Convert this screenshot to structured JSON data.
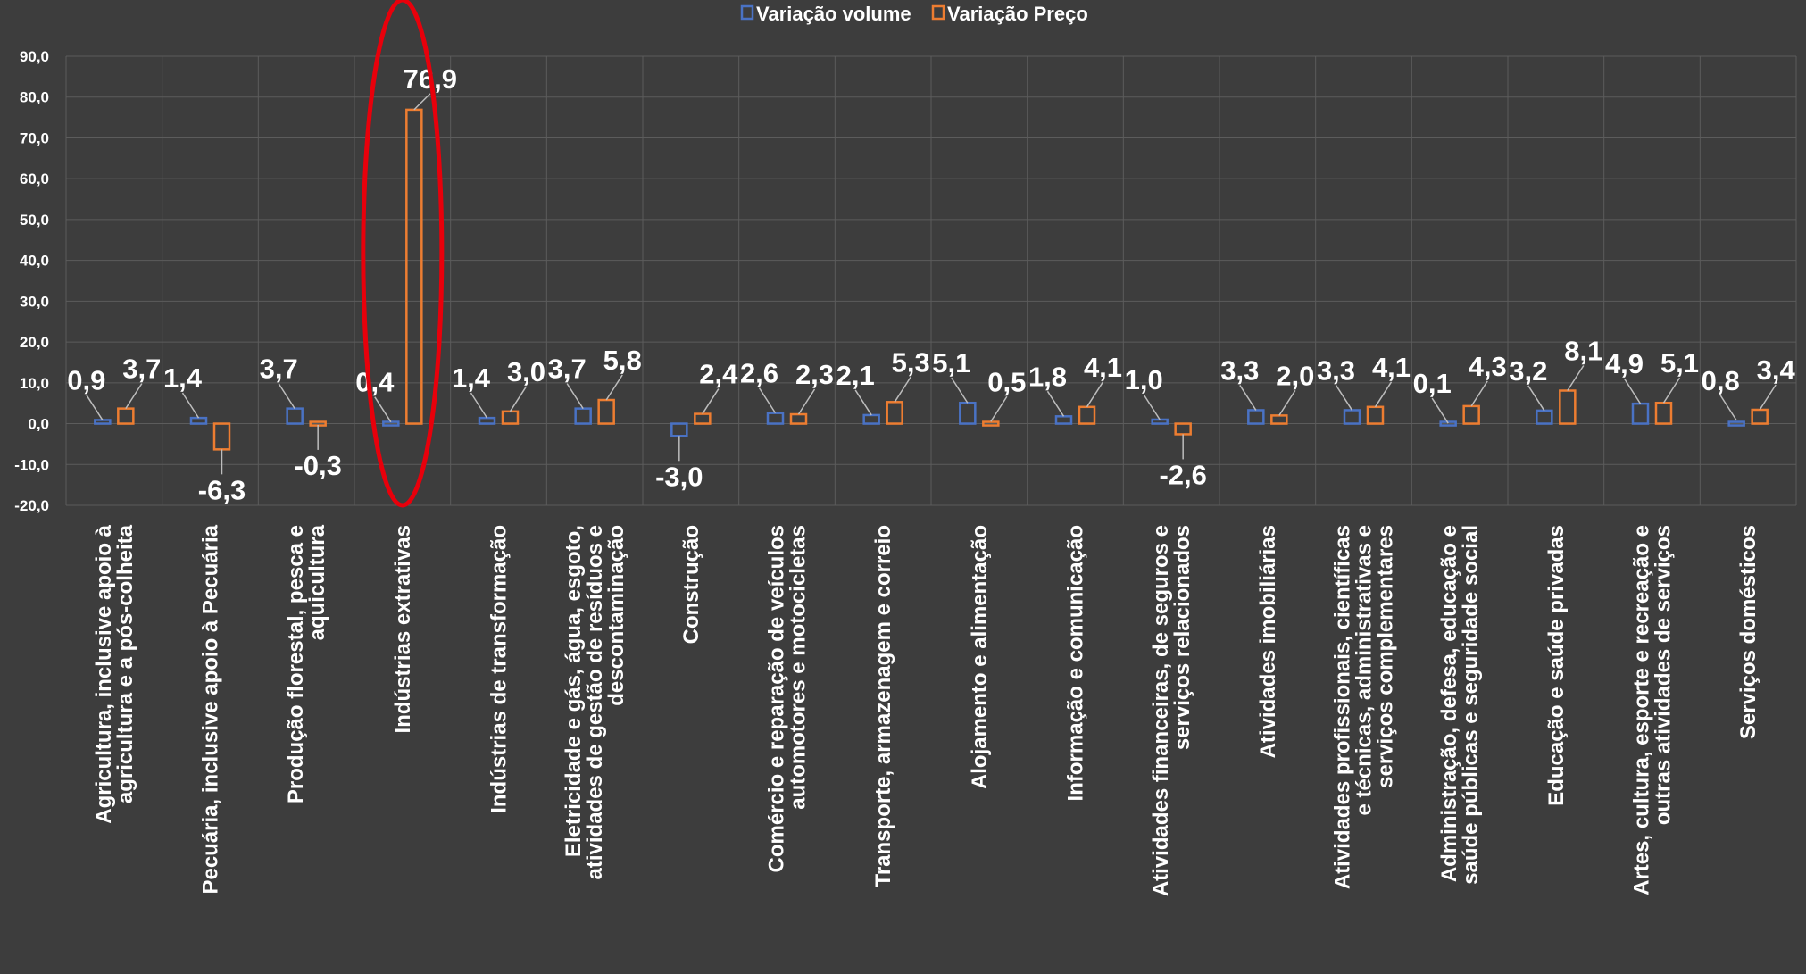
{
  "colors": {
    "background": "#3d3d3d",
    "volume": "#4a72c4",
    "price": "#ed7d31",
    "highlight": "#e8000b",
    "grid": "#5c5c5c"
  },
  "chart_data": {
    "type": "bar",
    "title": "",
    "xlabel": "",
    "ylabel": "",
    "ylim": [
      -20,
      90
    ],
    "ytick_step": 10,
    "ytick_labels": [
      "-20,0",
      "-10,0",
      "0,0",
      "10,0",
      "20,0",
      "30,0",
      "40,0",
      "50,0",
      "60,0",
      "70,0",
      "80,0",
      "90,0"
    ],
    "grid": true,
    "legend_position": "top-center",
    "highlighted_category_index": 3,
    "categories": [
      [
        "Agricultura, inclusive apoio à",
        "agricultura e a pós-colheita"
      ],
      [
        "Pecuária, inclusive apoio à Pecuária"
      ],
      [
        "Produção florestal, pesca e",
        "aquicultura"
      ],
      [
        "Indústrias extrativas"
      ],
      [
        "Indústrias de transformação"
      ],
      [
        "Eletricidade e gás, água, esgoto,",
        "atividades de gestão de resíduos e",
        "descontaminação"
      ],
      [
        "Construção"
      ],
      [
        "Comércio e reparação de veículos",
        "automotores e motocicletas"
      ],
      [
        "Transporte, armazenagem e correio"
      ],
      [
        "Alojamento e alimentação"
      ],
      [
        "Informação e comunicação"
      ],
      [
        "Atividades financeiras, de seguros e",
        "serviços relacionados"
      ],
      [
        "Atividades imobiliárias"
      ],
      [
        "Atividades profissionais, científicas",
        "e técnicas, administrativas e",
        "serviços complementares"
      ],
      [
        "Administração, defesa, educação e",
        "saúde públicas e seguridade social"
      ],
      [
        "Educação e saúde privadas"
      ],
      [
        "Artes, cultura, esporte e recreação e",
        "outras atividades de serviços"
      ],
      [
        "Serviços domésticos"
      ]
    ],
    "series": [
      {
        "name": "Variação volume",
        "values": [
          0.9,
          1.4,
          3.7,
          0.4,
          1.4,
          3.7,
          -3.0,
          2.6,
          2.1,
          5.1,
          1.8,
          1.0,
          3.3,
          3.3,
          0.1,
          3.2,
          4.9,
          0.8
        ],
        "labels": [
          "0,9",
          "1,4",
          "3,7",
          "0,4",
          "1,4",
          "3,7",
          "-3,0",
          "2,6",
          "2,1",
          "5,1",
          "1,8",
          "1,0",
          "3,3",
          "3,3",
          "0,1",
          "3,2",
          "4,9",
          "0,8"
        ]
      },
      {
        "name": "Variação Preço",
        "values": [
          3.7,
          -6.3,
          -0.3,
          76.9,
          3.0,
          5.8,
          2.4,
          2.3,
          5.3,
          0.5,
          4.1,
          -2.6,
          2.0,
          4.1,
          4.3,
          8.1,
          5.1,
          3.4
        ],
        "labels": [
          "3,7",
          "-6,3",
          "-0,3",
          "76,9",
          "3,0",
          "5,8",
          "2,4",
          "2,3",
          "5,3",
          "0,5",
          "4,1",
          "-2,6",
          "2,0",
          "4,1",
          "4,3",
          "8,1",
          "5,1",
          "3,4"
        ]
      }
    ]
  }
}
